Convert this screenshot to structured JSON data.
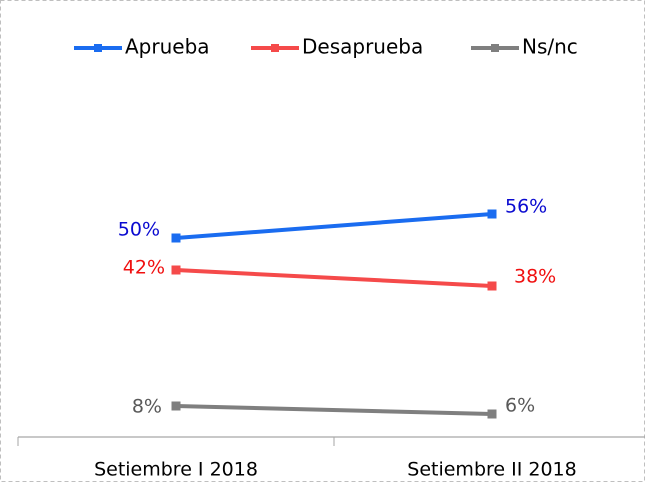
{
  "chart_data": {
    "type": "line",
    "categories": [
      "Setiembre I 2018",
      "Setiembre II 2018"
    ],
    "series": [
      {
        "name": "Aprueba",
        "color": "#1a6cf0",
        "label_color": "#0a0ad0",
        "values": [
          50,
          56
        ],
        "value_labels": [
          "50%",
          "56%"
        ]
      },
      {
        "name": "Desaprueba",
        "color": "#f54a4a",
        "label_color": "#f01010",
        "values": [
          42,
          38
        ],
        "value_labels": [
          "42%",
          "38%"
        ]
      },
      {
        "name": "Ns/nc",
        "color": "#7f7f7f",
        "label_color": "#595959",
        "values": [
          8,
          6
        ],
        "value_labels": [
          "8%",
          "6%"
        ]
      }
    ],
    "ylim": [
      0,
      60
    ],
    "legend": "top"
  }
}
